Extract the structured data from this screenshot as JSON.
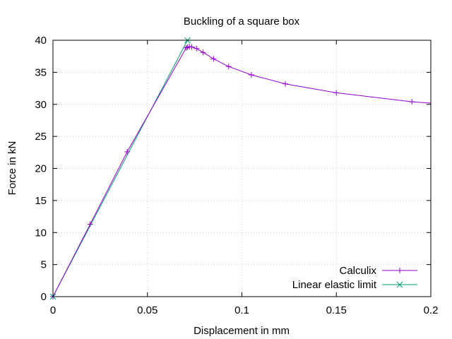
{
  "chart_data": {
    "type": "line",
    "title": "Buckling of a square box",
    "xlabel": "Displacement in mm",
    "ylabel": "Force in kN",
    "xlim": [
      0,
      0.2
    ],
    "ylim": [
      0,
      40
    ],
    "xticks": [
      0,
      0.05,
      0.1,
      0.15,
      0.2
    ],
    "xtick_labels": [
      "0",
      "0.05",
      "0.1",
      "0.15",
      "0.2"
    ],
    "yticks": [
      0,
      5,
      10,
      15,
      20,
      25,
      30,
      35,
      40
    ],
    "ytick_labels": [
      "0",
      "5",
      "10",
      "15",
      "20",
      "25",
      "30",
      "35",
      "40"
    ],
    "grid": true,
    "legend_position": "bottom-right",
    "series": [
      {
        "name": "Calculix",
        "color": "#9400d3",
        "marker": "plus",
        "x": [
          0,
          0.0197,
          0.0393,
          0.0705,
          0.0712,
          0.0722,
          0.0735,
          0.076,
          0.0795,
          0.085,
          0.093,
          0.105,
          0.123,
          0.15,
          0.19,
          0.2
        ],
        "y": [
          0,
          11.3,
          22.6,
          38.8,
          38.9,
          39.0,
          38.95,
          38.7,
          38.1,
          37.1,
          35.9,
          34.6,
          33.2,
          31.8,
          30.4,
          30.2
        ]
      },
      {
        "name": "Linear elastic limit",
        "color": "#009e73",
        "marker": "cross",
        "x": [
          0,
          0.0712
        ],
        "y": [
          0,
          40
        ]
      }
    ]
  }
}
